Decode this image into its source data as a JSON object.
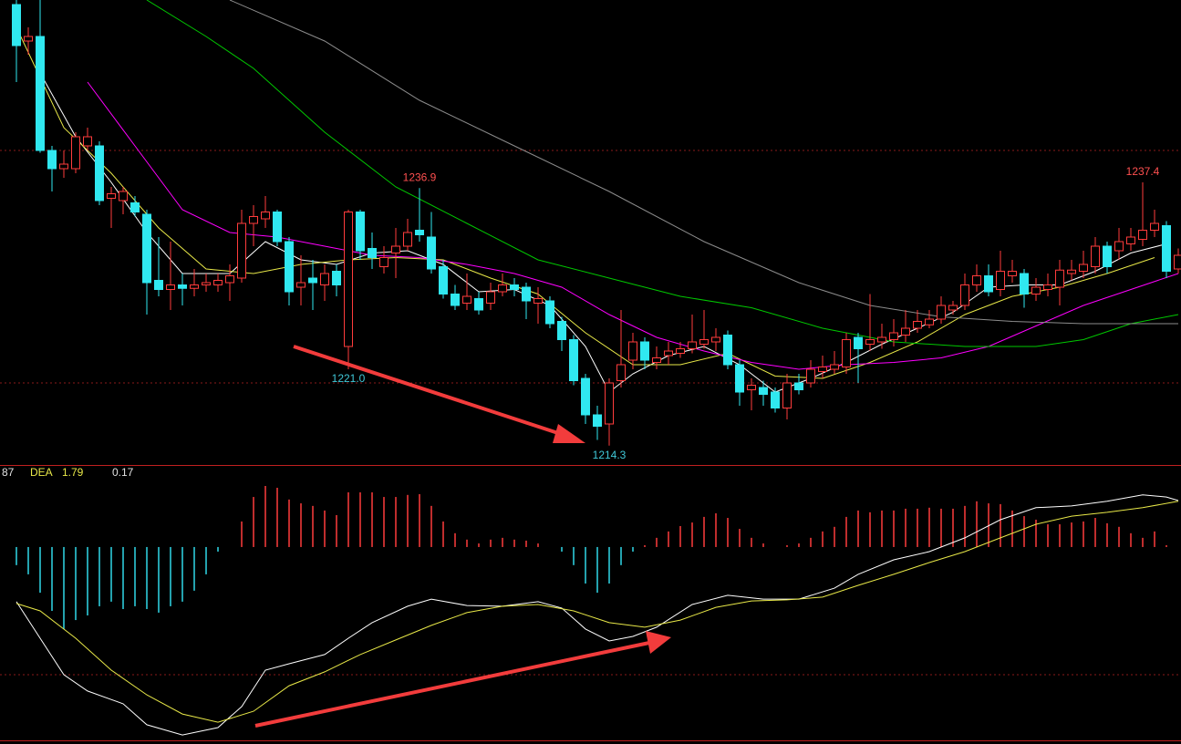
{
  "chart_data": [
    {
      "type": "candlestick",
      "up_color": "#ff3c3c",
      "down_color": "#30e8f0",
      "ylim": [
        1212.6,
        1253.4
      ],
      "open": [
        1253.0,
        1249.8,
        1250.2,
        1240.2,
        1238.6,
        1238.6,
        1240.6,
        1240.6,
        1236.0,
        1235.8,
        1235.6,
        1234.6,
        1228.8,
        1228.0,
        1228.4,
        1228.1,
        1228.4,
        1228.4,
        1228.6,
        1229.0,
        1233.8,
        1234.2,
        1234.8,
        1232.2,
        1228.2,
        1229.0,
        1228.4,
        1229.6,
        1223.0,
        1234.8,
        1231.6,
        1230.0,
        1231.2,
        1231.8,
        1233.2,
        1232.6,
        1230.0,
        1227.6,
        1226.8,
        1227.2,
        1226.8,
        1227.8,
        1228.4,
        1228.2,
        1226.8,
        1227.0,
        1225.2,
        1223.6,
        1220.2,
        1217.0,
        1216.2,
        1220.0,
        1221.8,
        1223.4,
        1221.6,
        1222.2,
        1222.4,
        1222.8,
        1223.2,
        1223.4,
        1224.0,
        1221.4,
        1219.2,
        1219.4,
        1219.0,
        1217.6,
        1219.8,
        1219.8,
        1220.8,
        1221.0,
        1221.2,
        1223.8,
        1223.2,
        1223.4,
        1223.6,
        1224.0,
        1224.6,
        1224.9,
        1225.4,
        1226.2,
        1226.6,
        1228.4,
        1229.2,
        1228.0,
        1229.2,
        1229.4,
        1227.6,
        1228.0,
        1228.2,
        1229.4,
        1229.6,
        1230.0,
        1231.8,
        1231.4,
        1232.0,
        1232.4,
        1233.2,
        1233.6,
        1229.8
      ],
      "high": [
        1253.4,
        1251.0,
        1253.4,
        1240.6,
        1240.2,
        1241.8,
        1242.2,
        1241.0,
        1237.0,
        1237.0,
        1236.2,
        1235.0,
        1232.6,
        1232.2,
        1229.4,
        1229.8,
        1229.4,
        1229.4,
        1230.2,
        1235.0,
        1235.4,
        1236.2,
        1235.0,
        1232.6,
        1231.0,
        1230.6,
        1230.2,
        1230.2,
        1235.0,
        1235.0,
        1233.0,
        1231.8,
        1233.4,
        1234.2,
        1236.9,
        1234.8,
        1230.6,
        1228.4,
        1229.4,
        1227.8,
        1228.6,
        1229.4,
        1229.0,
        1228.6,
        1228.2,
        1227.4,
        1225.6,
        1224.0,
        1220.6,
        1217.8,
        1220.2,
        1226.2,
        1224.2,
        1223.8,
        1223.0,
        1223.4,
        1223.4,
        1225.8,
        1226.2,
        1224.6,
        1224.4,
        1221.8,
        1220.2,
        1220.0,
        1219.4,
        1220.6,
        1220.6,
        1221.8,
        1222.2,
        1222.6,
        1224.2,
        1224.2,
        1227.6,
        1225.0,
        1225.4,
        1226.2,
        1226.2,
        1226.2,
        1227.4,
        1227.0,
        1229.4,
        1230.2,
        1230.2,
        1231.4,
        1230.6,
        1229.8,
        1229.0,
        1229.4,
        1230.6,
        1230.6,
        1231.4,
        1232.6,
        1232.2,
        1233.4,
        1233.4,
        1237.4,
        1235.0,
        1234.0,
        1231.6
      ],
      "low": [
        1246.2,
        1248.6,
        1240.0,
        1236.6,
        1237.8,
        1238.2,
        1240.2,
        1235.4,
        1233.4,
        1234.6,
        1234.4,
        1225.8,
        1227.4,
        1226.2,
        1226.6,
        1227.4,
        1227.8,
        1227.8,
        1227.0,
        1228.6,
        1231.8,
        1233.4,
        1231.8,
        1226.6,
        1226.6,
        1226.2,
        1227.0,
        1227.4,
        1221.0,
        1230.6,
        1229.8,
        1229.4,
        1229.0,
        1231.4,
        1232.2,
        1229.4,
        1227.2,
        1226.2,
        1226.2,
        1225.8,
        1226.2,
        1227.4,
        1227.4,
        1225.4,
        1225.0,
        1224.6,
        1222.6,
        1219.6,
        1216.2,
        1214.8,
        1214.3,
        1219.4,
        1221.0,
        1221.0,
        1221.0,
        1221.4,
        1222.0,
        1222.4,
        1222.8,
        1222.6,
        1221.0,
        1217.8,
        1217.4,
        1217.8,
        1217.2,
        1216.6,
        1218.8,
        1219.4,
        1220.2,
        1220.6,
        1220.6,
        1219.8,
        1222.6,
        1222.8,
        1223.0,
        1223.4,
        1224.2,
        1224.6,
        1225.0,
        1225.8,
        1226.2,
        1227.8,
        1227.4,
        1227.4,
        1228.6,
        1226.4,
        1227.0,
        1227.4,
        1226.6,
        1228.8,
        1229.0,
        1229.4,
        1229.4,
        1230.6,
        1231.4,
        1231.8,
        1232.6,
        1229.0,
        1229.4
      ],
      "close": [
        1249.4,
        1250.2,
        1240.2,
        1238.6,
        1239.0,
        1241.4,
        1241.4,
        1235.8,
        1236.4,
        1236.6,
        1234.8,
        1228.6,
        1228.0,
        1228.4,
        1228.1,
        1228.4,
        1228.6,
        1228.8,
        1229.2,
        1233.8,
        1234.4,
        1234.8,
        1232.2,
        1227.8,
        1228.6,
        1228.6,
        1229.4,
        1228.4,
        1234.8,
        1231.4,
        1230.8,
        1230.8,
        1231.8,
        1233.0,
        1232.8,
        1229.8,
        1227.6,
        1226.6,
        1227.4,
        1226.2,
        1227.8,
        1228.4,
        1228.0,
        1227.0,
        1227.2,
        1225.0,
        1223.6,
        1220.0,
        1217.0,
        1216.0,
        1219.8,
        1221.4,
        1223.4,
        1221.8,
        1222.0,
        1222.6,
        1222.8,
        1223.4,
        1223.6,
        1223.8,
        1221.4,
        1219.0,
        1219.6,
        1218.8,
        1217.6,
        1219.8,
        1219.2,
        1221.0,
        1221.2,
        1221.4,
        1223.6,
        1222.8,
        1223.6,
        1223.8,
        1224.2,
        1224.6,
        1225.2,
        1225.4,
        1226.6,
        1226.6,
        1228.4,
        1229.2,
        1227.8,
        1229.6,
        1229.6,
        1227.6,
        1228.2,
        1228.4,
        1229.7,
        1229.7,
        1230.2,
        1231.8,
        1230.0,
        1232.2,
        1232.6,
        1233.2,
        1233.8,
        1229.6,
        1231.0
      ],
      "lines": [
        {
          "color": "#ffffff",
          "x": [
            2,
            5,
            8,
            11,
            14,
            18,
            21,
            24,
            27,
            30,
            33,
            36,
            39,
            42,
            45,
            48,
            50,
            52,
            55,
            58,
            61,
            64,
            67,
            70,
            73,
            76,
            79,
            82,
            85,
            88,
            91,
            94,
            97
          ],
          "values": [
            1247.0,
            1241.4,
            1237.4,
            1233.0,
            1229.4,
            1229.4,
            1232.2,
            1230.6,
            1230.2,
            1231.2,
            1231.4,
            1230.2,
            1227.8,
            1228.0,
            1226.6,
            1223.0,
            1219.0,
            1220.6,
            1222.2,
            1223.0,
            1221.4,
            1219.0,
            1220.2,
            1221.6,
            1223.2,
            1224.6,
            1226.0,
            1228.2,
            1228.4,
            1228.4,
            1229.6,
            1231.2,
            1232.0
          ]
        },
        {
          "color": "#e8e848",
          "x": [
            0,
            4,
            8,
            12,
            16,
            20,
            24,
            28,
            32,
            36,
            40,
            44,
            48,
            52,
            56,
            60,
            64,
            68,
            72,
            76,
            80,
            84,
            88,
            92,
            96
          ],
          "values": [
            1251.0,
            1242.2,
            1238.2,
            1233.4,
            1229.8,
            1229.4,
            1230.2,
            1230.6,
            1230.8,
            1230.6,
            1229.0,
            1227.6,
            1224.2,
            1221.4,
            1221.4,
            1222.4,
            1220.4,
            1220.2,
            1221.6,
            1223.4,
            1225.8,
            1227.4,
            1228.2,
            1229.4,
            1230.8
          ]
        },
        {
          "color": "#ff00ff",
          "x": [
            6,
            10,
            14,
            18,
            22,
            26,
            30,
            34,
            38,
            42,
            46,
            50,
            54,
            58,
            62,
            66,
            70,
            74,
            78,
            82,
            86,
            90,
            94,
            98
          ],
          "values": [
            1246.2,
            1240.6,
            1235.0,
            1233.0,
            1232.6,
            1231.8,
            1231.0,
            1230.8,
            1230.2,
            1229.4,
            1228.2,
            1225.8,
            1223.8,
            1222.6,
            1221.6,
            1221.0,
            1221.4,
            1221.6,
            1222.0,
            1223.0,
            1224.8,
            1226.6,
            1228.0,
            1229.4
          ]
        },
        {
          "color": "#00c800",
          "x": [
            11,
            16,
            20,
            26,
            32,
            38,
            44,
            50,
            56,
            62,
            68,
            74,
            80,
            86,
            90,
            94,
            98
          ],
          "values": [
            1253.4,
            1250.2,
            1247.4,
            1241.8,
            1237.0,
            1233.8,
            1230.6,
            1229.0,
            1227.4,
            1226.4,
            1224.6,
            1223.4,
            1223.0,
            1223.0,
            1223.6,
            1225.0,
            1225.8
          ]
        },
        {
          "color": "#8c8c8c",
          "x": [
            18,
            26,
            34,
            42,
            50,
            58,
            66,
            72,
            78,
            84,
            90,
            98
          ],
          "values": [
            1253.4,
            1249.8,
            1244.6,
            1240.6,
            1236.6,
            1232.2,
            1228.6,
            1226.6,
            1225.6,
            1225.2,
            1225.0,
            1225.0
          ]
        }
      ],
      "annotations": [
        {
          "index": 34,
          "value": 1236.9,
          "label": "1236.9",
          "color": "#ff5050"
        },
        {
          "index": 28,
          "value": 1221.0,
          "label": "1221.0",
          "color": "#40c8d8"
        },
        {
          "index": 50,
          "value": 1214.3,
          "label": "1214.3",
          "color": "#40c8d8"
        },
        {
          "index": 95,
          "value": 1237.4,
          "label": "1237.4",
          "color": "#ff5050"
        }
      ]
    },
    {
      "type": "macd",
      "up_color": "#ff3c3c",
      "down_color": "#30d8e8",
      "ylim": [
        -7.57,
        3.14
      ],
      "values": [
        -0.71,
        -1.07,
        -1.79,
        -2.5,
        -3.21,
        -2.86,
        -2.68,
        -2.32,
        -2.14,
        -2.43,
        -2.32,
        -2.43,
        -2.57,
        -2.32,
        -2.14,
        -1.71,
        -1.07,
        -0.18,
        0,
        1.0,
        1.96,
        2.39,
        2.32,
        1.86,
        1.71,
        1.61,
        1.43,
        1.25,
        2.14,
        2.14,
        2.14,
        1.96,
        1.96,
        2.04,
        2.07,
        1.61,
        1.0,
        0.54,
        0.29,
        0.14,
        0.29,
        0.36,
        0.29,
        0.25,
        0.14,
        0,
        -0.18,
        -0.71,
        -1.43,
        -1.79,
        -1.43,
        -0.71,
        -0.18,
        0.07,
        0.36,
        0.61,
        0.82,
        0.96,
        1.18,
        1.32,
        1.14,
        0.71,
        0.36,
        0.14,
        0,
        0.07,
        0.14,
        0.36,
        0.61,
        0.79,
        1.18,
        1.43,
        1.36,
        1.43,
        1.43,
        1.5,
        1.5,
        1.54,
        1.5,
        1.5,
        1.61,
        1.79,
        1.71,
        1.68,
        1.43,
        1.21,
        1.07,
        0.89,
        0.89,
        0.96,
        1.0,
        1.14,
        0.93,
        0.79,
        0.54,
        0.36,
        0.61,
        0.07,
        0
      ],
      "lines": [
        {
          "color": "#ffffff",
          "x": [
            0,
            2,
            4,
            6,
            9,
            11,
            14,
            17,
            19,
            21,
            23,
            26,
            28,
            30,
            33,
            35,
            38,
            41,
            44,
            46,
            48,
            50,
            52,
            54,
            57,
            60,
            63,
            66,
            69,
            71,
            74,
            77,
            80,
            83,
            86,
            89,
            92,
            95,
            97,
            98
          ],
          "values": [
            -2.14,
            -3.57,
            -5.0,
            -5.64,
            -6.14,
            -6.96,
            -7.36,
            -7.07,
            -6.25,
            -4.82,
            -4.57,
            -4.21,
            -3.57,
            -2.96,
            -2.32,
            -2.04,
            -2.29,
            -2.32,
            -2.14,
            -2.39,
            -3.21,
            -3.68,
            -3.5,
            -3.14,
            -2.25,
            -1.89,
            -2.04,
            -2.04,
            -1.61,
            -1.07,
            -0.5,
            -0.18,
            0.36,
            1.07,
            1.54,
            1.61,
            1.79,
            2.04,
            1.96,
            1.82
          ]
        },
        {
          "color": "#e8e848",
          "x": [
            0,
            2,
            5,
            8,
            11,
            14,
            17,
            20,
            23,
            26,
            29,
            32,
            35,
            38,
            41,
            44,
            47,
            50,
            53,
            56,
            59,
            62,
            65,
            68,
            71,
            74,
            77,
            80,
            83,
            86,
            89,
            92,
            95,
            98
          ],
          "values": [
            -2.21,
            -2.5,
            -3.57,
            -4.82,
            -5.79,
            -6.54,
            -6.86,
            -6.43,
            -5.43,
            -4.89,
            -4.21,
            -3.64,
            -3.07,
            -2.57,
            -2.32,
            -2.25,
            -2.5,
            -2.96,
            -3.14,
            -2.86,
            -2.36,
            -2.11,
            -2.07,
            -1.96,
            -1.5,
            -1.07,
            -0.61,
            -0.18,
            0.36,
            0.89,
            1.21,
            1.36,
            1.54,
            1.79
          ]
        }
      ],
      "legend": {
        "dif_value": "87",
        "dea_label": "DEA",
        "dea_value": 1.79,
        "macd_value": 0.17
      }
    }
  ]
}
